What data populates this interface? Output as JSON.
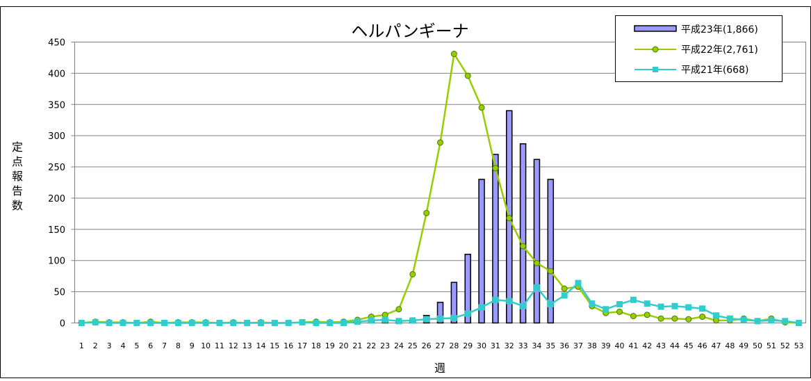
{
  "chart_data": {
    "type": "bar",
    "title": "ヘルパンギーナ",
    "xlabel": "週",
    "ylabel": "定点報告数",
    "ylim": [
      0,
      450
    ],
    "yticks": [
      0,
      50,
      100,
      150,
      200,
      250,
      300,
      350,
      400,
      450
    ],
    "grid": true,
    "legend_position": "top-right",
    "categories": [
      "1",
      "2",
      "3",
      "4",
      "5",
      "6",
      "7",
      "8",
      "9",
      "10",
      "11",
      "12",
      "13",
      "14",
      "15",
      "16",
      "17",
      "18",
      "19",
      "20",
      "21",
      "22",
      "23",
      "24",
      "25",
      "26",
      "27",
      "28",
      "29",
      "30",
      "31",
      "32",
      "33",
      "34",
      "35",
      "36",
      "37",
      "38",
      "39",
      "40",
      "41",
      "42",
      "43",
      "44",
      "45",
      "46",
      "47",
      "48",
      "49",
      "50",
      "51",
      "52",
      "53"
    ],
    "series": [
      {
        "name": "平成23年(1,866)",
        "type": "bar",
        "color": "#9999FF",
        "values": [
          1,
          1,
          1,
          1,
          1,
          1,
          1,
          1,
          1,
          1,
          1,
          1,
          1,
          1,
          1,
          1,
          1,
          1,
          1,
          1,
          3,
          5,
          6,
          4,
          5,
          12,
          33,
          65,
          110,
          230,
          270,
          340,
          287,
          262,
          230,
          null,
          null,
          null,
          null,
          null,
          null,
          null,
          null,
          null,
          null,
          null,
          null,
          null,
          null,
          null,
          null,
          null,
          null
        ]
      },
      {
        "name": "平成22年(2,761)",
        "type": "line",
        "color": "#99CC00",
        "marker": "circle",
        "values": [
          0,
          2,
          1,
          1,
          0,
          2,
          0,
          1,
          1,
          1,
          0,
          1,
          0,
          1,
          0,
          0,
          1,
          2,
          1,
          2,
          5,
          10,
          13,
          22,
          78,
          176,
          289,
          431,
          396,
          345,
          248,
          168,
          123,
          96,
          83,
          55,
          58,
          27,
          16,
          18,
          11,
          13,
          7,
          7,
          6,
          10,
          4,
          4,
          7,
          3,
          7,
          1,
          0
        ]
      },
      {
        "name": "平成21年(668)",
        "type": "line",
        "color": "#33CCCC",
        "marker": "square",
        "values": [
          0,
          1,
          0,
          0,
          0,
          0,
          0,
          0,
          0,
          0,
          0,
          0,
          0,
          0,
          0,
          0,
          1,
          0,
          0,
          0,
          2,
          4,
          5,
          3,
          4,
          6,
          7,
          8,
          15,
          25,
          37,
          35,
          27,
          57,
          30,
          44,
          64,
          31,
          22,
          30,
          37,
          31,
          26,
          27,
          25,
          23,
          12,
          7,
          5,
          3,
          4,
          3,
          0
        ]
      }
    ]
  }
}
